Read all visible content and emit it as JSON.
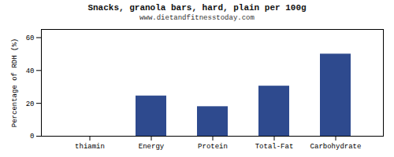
{
  "chart_data": {
    "type": "bar",
    "title": "Snacks, granola bars, hard, plain per 100g",
    "subtitle": "www.dietandfitnesstoday.com",
    "categories": [
      "thiamin",
      "Energy",
      "Protein",
      "Total-Fat",
      "Carbohydrate"
    ],
    "values": [
      0,
      24.5,
      18,
      30.5,
      50
    ],
    "color": "#2e4a8e",
    "ylabel": "Percentage of RDH (%)",
    "ylim": [
      0,
      65
    ],
    "yticks": [
      0,
      20,
      40,
      60
    ],
    "grid": true
  }
}
